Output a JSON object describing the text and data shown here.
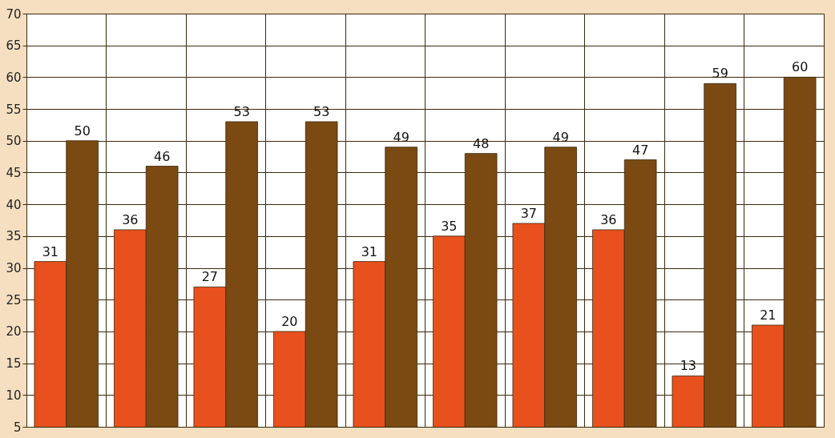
{
  "chart_data": {
    "type": "bar",
    "categories": [
      null,
      null,
      null,
      null,
      null,
      null,
      null,
      null,
      null,
      null
    ],
    "series": [
      {
        "color": "#e8501e",
        "values": [
          31,
          36,
          27,
          20,
          31,
          35,
          37,
          36,
          13,
          21
        ]
      },
      {
        "color": "#7a4a12",
        "values": [
          50,
          46,
          53,
          53,
          49,
          48,
          49,
          47,
          59,
          60
        ]
      }
    ],
    "ylim": [
      5,
      70
    ],
    "yticks": [
      5,
      10,
      15,
      20,
      25,
      30,
      35,
      40,
      45,
      50,
      55,
      60,
      65,
      70
    ],
    "grid": true,
    "data_labels": true,
    "tick_labels": "y",
    "legend": false
  }
}
